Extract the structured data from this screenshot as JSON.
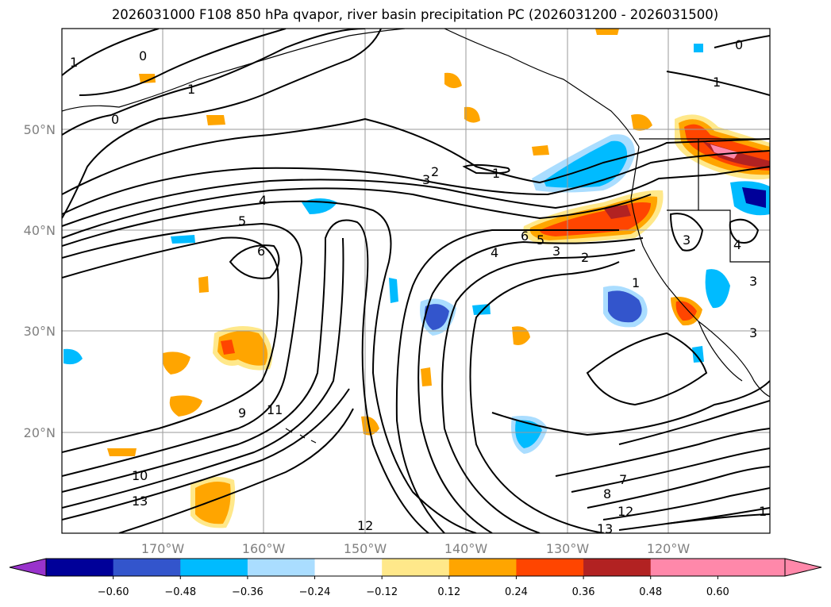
{
  "title": "2026031000 F108 850 hPa qvapor, river basin precipitation PC (2026031200 - 2026031500)",
  "map": {
    "lon_labels": [
      "170°W",
      "160°W",
      "150°W",
      "140°W",
      "130°W",
      "120°W"
    ],
    "lat_labels": [
      "50°N",
      "40°N",
      "30°N",
      "20°N"
    ],
    "contour_labels": [
      "0",
      "1",
      "0",
      "1",
      "2",
      "3",
      "1",
      "4",
      "5",
      "6",
      "6",
      "5",
      "4",
      "3",
      "2",
      "1",
      "9",
      "11",
      "10",
      "13",
      "12",
      "13",
      "12",
      "8",
      "7",
      "3",
      "4",
      "3",
      "3",
      "1",
      "0",
      "1"
    ]
  },
  "colorbar": {
    "colors": [
      "#9933cc",
      "#000099",
      "#3355cc",
      "#00bbff",
      "#aaddff",
      "#ffffff",
      "#ffe88a",
      "#ffa500",
      "#ff4500",
      "#b22222",
      "#ff88aa",
      "#ff88aa"
    ],
    "tick_labels": [
      "−0.60",
      "−0.48",
      "−0.36",
      "−0.24",
      "−0.12",
      "0.12",
      "0.24",
      "0.36",
      "0.48",
      "0.60"
    ]
  }
}
